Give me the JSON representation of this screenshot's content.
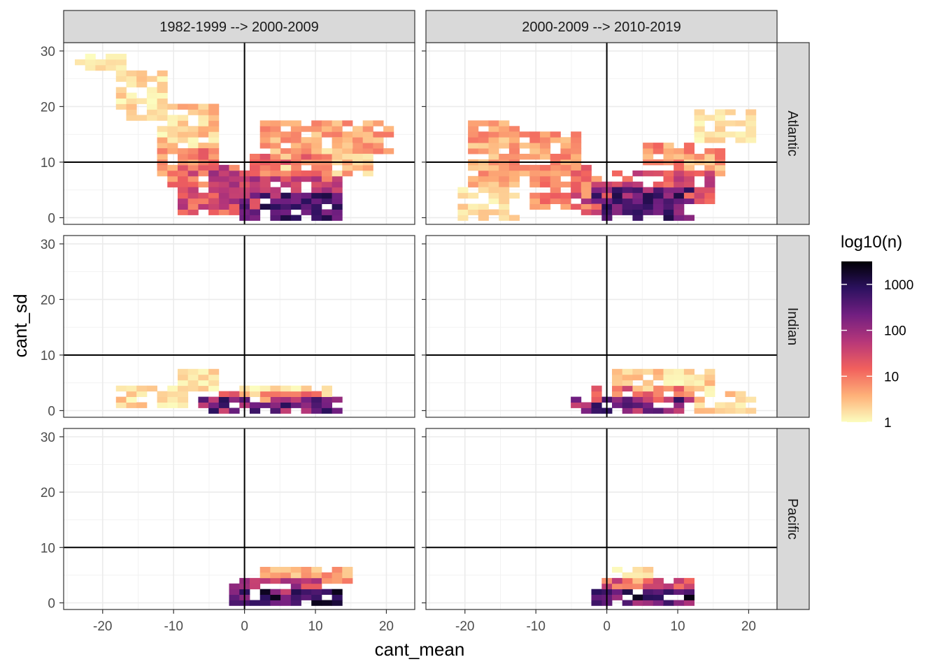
{
  "chart_data": {
    "type": "heatmap",
    "xlabel": "cant_mean",
    "ylabel": "cant_sd",
    "xlim": [
      -25.5,
      24
    ],
    "ylim": [
      -1.2,
      31.5
    ],
    "x_ticks": [
      -20,
      -10,
      0,
      10,
      20
    ],
    "x_tick_labels": [
      "-20",
      "-10",
      "0",
      "10",
      "20"
    ],
    "y_ticks": [
      0,
      10,
      20,
      30
    ],
    "y_tick_labels": [
      "0",
      "10",
      "20",
      "30"
    ],
    "reference_lines": {
      "x": 0,
      "y": 10
    },
    "grid": true,
    "bin_width": {
      "x": 1.45,
      "y": 1.0
    },
    "columns": [
      "1982-1999 --> 2000-2009",
      "2000-2009 --> 2010-2019"
    ],
    "rows": [
      "Atlantic",
      "Indian",
      "Pacific"
    ],
    "legend": {
      "title": "log10(n)",
      "placement": "right",
      "scale": "log10",
      "range": [
        0,
        3.5
      ],
      "breaks": [
        0,
        1,
        2,
        3
      ],
      "labels": [
        "1",
        "10",
        "100",
        "1000"
      ],
      "colors": [
        "#fcfdbf",
        "#feb078",
        "#f1605d",
        "#b73779",
        "#721f81",
        "#2c115f",
        "#000004"
      ]
    },
    "panels": [
      {
        "column": "1982-1999 --> 2000-2009",
        "row": "Atlantic",
        "blobs": [
          {
            "x": [
              -22.5,
              -17
            ],
            "y": [
              27,
              29
            ],
            "v": [
              0,
              0.4
            ]
          },
          {
            "x": [
              -18,
              -12
            ],
            "y": [
              18,
              26
            ],
            "v": [
              0,
              0.5
            ]
          },
          {
            "x": [
              -12,
              -5
            ],
            "y": [
              13,
              20
            ],
            "v": [
              0,
              0.7
            ]
          },
          {
            "x": [
              -12,
              -5
            ],
            "y": [
              6,
              12
            ],
            "v": [
              0.5,
              1.3
            ]
          },
          {
            "x": [
              -9,
              -1
            ],
            "y": [
              1,
              9
            ],
            "v": [
              0.8,
              1.9
            ]
          },
          {
            "x": [
              -4,
              2
            ],
            "y": [
              2,
              8
            ],
            "v": [
              1.3,
              2.1
            ]
          },
          {
            "x": [
              0,
              13
            ],
            "y": [
              0,
              4
            ],
            "v": [
              2.2,
              3.1
            ]
          },
          {
            "x": [
              0,
              13
            ],
            "y": [
              4,
              7
            ],
            "v": [
              1.4,
              2.0
            ]
          },
          {
            "x": [
              1,
              12
            ],
            "y": [
              7,
              11
            ],
            "v": [
              0.7,
              1.4
            ]
          },
          {
            "x": [
              3,
              20
            ],
            "y": [
              12,
              17
            ],
            "v": [
              0.3,
              1.0
            ]
          },
          {
            "x": [
              5,
              18
            ],
            "y": [
              8,
              14
            ],
            "v": [
              0.1,
              0.9
            ]
          }
        ]
      },
      {
        "column": "2000-2009 --> 2010-2019",
        "row": "Atlantic",
        "blobs": [
          {
            "x": [
              -19,
              -13
            ],
            "y": [
              6,
              17
            ],
            "v": [
              0.3,
              1.0
            ]
          },
          {
            "x": [
              -13,
              -5
            ],
            "y": [
              8,
              15
            ],
            "v": [
              0.4,
              1.1
            ]
          },
          {
            "x": [
              -10,
              -2
            ],
            "y": [
              2,
              9
            ],
            "v": [
              0.6,
              1.4
            ]
          },
          {
            "x": [
              -4,
              3
            ],
            "y": [
              1,
              6
            ],
            "v": [
              1.1,
              1.9
            ]
          },
          {
            "x": [
              -2,
              11
            ],
            "y": [
              0,
              5
            ],
            "v": [
              2.0,
              3.1
            ]
          },
          {
            "x": [
              2,
              14
            ],
            "y": [
              3,
              8
            ],
            "v": [
              1.0,
              1.8
            ]
          },
          {
            "x": [
              6,
              16
            ],
            "y": [
              8,
              13
            ],
            "v": [
              0.3,
              1.2
            ]
          },
          {
            "x": [
              13,
              20
            ],
            "y": [
              14,
              19
            ],
            "v": [
              0,
              0.4
            ]
          },
          {
            "x": [
              -20,
              -13
            ],
            "y": [
              0,
              5
            ],
            "v": [
              0,
              0.5
            ]
          }
        ]
      },
      {
        "column": "1982-1999 --> 2000-2009",
        "row": "Indian",
        "blobs": [
          {
            "x": [
              -17,
              -8
            ],
            "y": [
              1,
              4
            ],
            "v": [
              0,
              0.6
            ]
          },
          {
            "x": [
              -9,
              -4
            ],
            "y": [
              4,
              7
            ],
            "v": [
              0,
              0.5
            ]
          },
          {
            "x": [
              -6,
              13
            ],
            "y": [
              0,
              2
            ],
            "v": [
              1.5,
              3.0
            ]
          },
          {
            "x": [
              -3,
              12
            ],
            "y": [
              2,
              3
            ],
            "v": [
              0.6,
              1.4
            ]
          },
          {
            "x": [
              -1,
              11
            ],
            "y": [
              3,
              4
            ],
            "v": [
              0,
              0.4
            ]
          }
        ]
      },
      {
        "column": "2000-2009 --> 2010-2019",
        "row": "Indian",
        "blobs": [
          {
            "x": [
              -4,
              11
            ],
            "y": [
              0,
              2
            ],
            "v": [
              1.5,
              3.0
            ]
          },
          {
            "x": [
              -1,
              11
            ],
            "y": [
              2,
              4
            ],
            "v": [
              0.7,
              1.6
            ]
          },
          {
            "x": [
              1,
              14
            ],
            "y": [
              4,
              7
            ],
            "v": [
              0,
              0.6
            ]
          },
          {
            "x": [
              13,
              21
            ],
            "y": [
              0,
              3
            ],
            "v": [
              0,
              0.6
            ]
          }
        ]
      },
      {
        "column": "1982-1999 --> 2000-2009",
        "row": "Pacific",
        "blobs": [
          {
            "x": [
              -1,
              13
            ],
            "y": [
              0,
              2
            ],
            "v": [
              2.0,
              3.4
            ]
          },
          {
            "x": [
              -1,
              12
            ],
            "y": [
              2,
              4
            ],
            "v": [
              1.2,
              2.2
            ]
          },
          {
            "x": [
              3,
              14
            ],
            "y": [
              4,
              6
            ],
            "v": [
              0.3,
              1.0
            ]
          }
        ]
      },
      {
        "column": "2000-2009 --> 2010-2019",
        "row": "Pacific",
        "blobs": [
          {
            "x": [
              -2,
              11
            ],
            "y": [
              0,
              2
            ],
            "v": [
              1.8,
              3.4
            ]
          },
          {
            "x": [
              -1,
              11
            ],
            "y": [
              2,
              4
            ],
            "v": [
              0.8,
              1.8
            ]
          },
          {
            "x": [
              1,
              6
            ],
            "y": [
              4,
              5.5
            ],
            "v": [
              0,
              0.5
            ]
          }
        ]
      }
    ]
  }
}
